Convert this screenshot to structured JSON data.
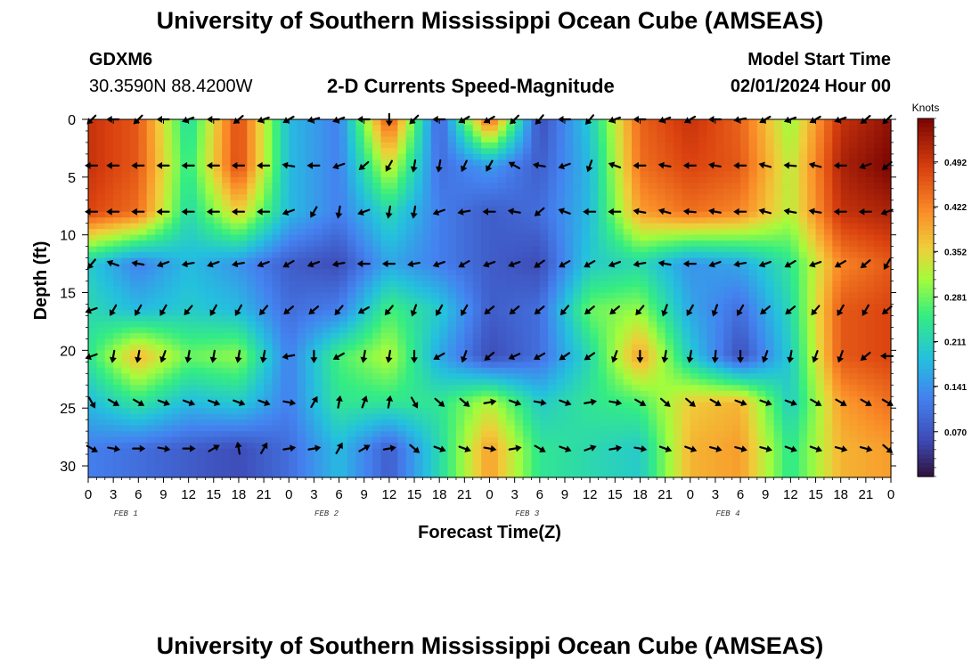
{
  "header": {
    "title": "University of Southern Mississippi Ocean Cube (AMSEAS)",
    "station_id": "GDXM6",
    "coordinates": "30.3590N  88.4200W",
    "plot_title": "2-D Currents Speed-Magnitude",
    "model_start_label": "Model Start Time",
    "model_start_value": "02/01/2024 Hour 00"
  },
  "footer": {
    "title": "University of Southern Mississippi Ocean Cube (AMSEAS)"
  },
  "chart_data": {
    "type": "heatmap",
    "xlabel": "Forecast Time(Z)",
    "ylabel": "Depth (ft)",
    "x_tick_labels": [
      "0",
      "3",
      "6",
      "9",
      "12",
      "15",
      "18",
      "21",
      "0",
      "3",
      "6",
      "9",
      "12",
      "15",
      "18",
      "21",
      "0",
      "3",
      "6",
      "9",
      "12",
      "15",
      "18",
      "21",
      "0",
      "3",
      "6",
      "9",
      "12",
      "15",
      "18",
      "21",
      "0"
    ],
    "date_labels": [
      "FEB 1",
      "FEB 2",
      "FEB 3",
      "FEB 4"
    ],
    "xlim": [
      0,
      96
    ],
    "ylim": [
      31,
      0
    ],
    "y_ticks": [
      0,
      5,
      10,
      15,
      20,
      25,
      30
    ],
    "colorbar": {
      "label": "Knots",
      "ticks": [
        "0.492",
        "0.422",
        "0.352",
        "0.281",
        "0.211",
        "0.141",
        "0.070"
      ],
      "tick_values": [
        0.492,
        0.422,
        0.352,
        0.281,
        0.211,
        0.141,
        0.07
      ],
      "range": [
        0,
        0.56
      ]
    },
    "arrow_depths": [
      0,
      4,
      8,
      12.5,
      16.5,
      20.5,
      24.5,
      28.5
    ],
    "arrow_hours_step": 3,
    "speed_grid_depths": [
      0,
      4,
      8,
      12.5,
      16.5,
      20.5,
      24.5,
      28.5
    ],
    "speed_grid_hours": [
      0,
      6,
      12,
      18,
      24,
      30,
      36,
      42,
      48,
      54,
      60,
      66,
      72,
      78,
      84,
      90,
      96
    ],
    "speed_knots": [
      [
        0.5,
        0.46,
        0.22,
        0.48,
        0.18,
        0.12,
        0.47,
        0.08,
        0.46,
        0.06,
        0.2,
        0.45,
        0.5,
        0.45,
        0.3,
        0.5,
        0.54
      ],
      [
        0.5,
        0.46,
        0.24,
        0.48,
        0.18,
        0.12,
        0.34,
        0.1,
        0.15,
        0.08,
        0.18,
        0.44,
        0.48,
        0.46,
        0.32,
        0.52,
        0.56
      ],
      [
        0.48,
        0.44,
        0.22,
        0.36,
        0.18,
        0.12,
        0.22,
        0.12,
        0.08,
        0.1,
        0.18,
        0.4,
        0.44,
        0.42,
        0.32,
        0.5,
        0.52
      ],
      [
        0.2,
        0.12,
        0.18,
        0.14,
        0.08,
        0.06,
        0.16,
        0.12,
        0.08,
        0.06,
        0.2,
        0.22,
        0.14,
        0.16,
        0.24,
        0.42,
        0.46
      ],
      [
        0.22,
        0.18,
        0.2,
        0.18,
        0.1,
        0.12,
        0.26,
        0.2,
        0.08,
        0.1,
        0.28,
        0.3,
        0.16,
        0.1,
        0.22,
        0.46,
        0.48
      ],
      [
        0.24,
        0.38,
        0.28,
        0.3,
        0.12,
        0.26,
        0.32,
        0.16,
        0.06,
        0.1,
        0.22,
        0.4,
        0.2,
        0.06,
        0.2,
        0.46,
        0.48
      ],
      [
        0.18,
        0.24,
        0.18,
        0.2,
        0.12,
        0.24,
        0.24,
        0.24,
        0.32,
        0.2,
        0.24,
        0.26,
        0.36,
        0.38,
        0.2,
        0.4,
        0.44
      ],
      [
        0.12,
        0.1,
        0.08,
        0.06,
        0.1,
        0.18,
        0.08,
        0.22,
        0.4,
        0.24,
        0.22,
        0.2,
        0.38,
        0.4,
        0.24,
        0.38,
        0.4
      ]
    ],
    "arrow_angles_deg": [
      [
        225,
        180,
        225,
        180,
        200,
        180,
        220,
        200,
        210,
        195,
        200,
        180,
        270,
        225,
        180,
        210,
        210,
        225,
        230,
        180,
        230,
        200,
        180,
        200,
        210,
        180,
        190,
        210,
        200,
        210,
        200,
        220,
        225
      ],
      [
        180,
        180,
        180,
        180,
        180,
        180,
        180,
        180,
        170,
        180,
        200,
        220,
        240,
        260,
        260,
        245,
        240,
        150,
        170,
        200,
        250,
        160,
        180,
        170,
        180,
        170,
        180,
        165,
        175,
        165,
        180,
        200,
        220
      ],
      [
        180,
        180,
        180,
        180,
        180,
        180,
        180,
        180,
        200,
        240,
        260,
        200,
        260,
        260,
        200,
        190,
        180,
        170,
        220,
        160,
        180,
        180,
        170,
        165,
        175,
        170,
        180,
        165,
        170,
        170,
        180,
        180,
        200
      ],
      [
        230,
        160,
        170,
        200,
        190,
        200,
        190,
        200,
        210,
        200,
        190,
        180,
        180,
        190,
        200,
        210,
        200,
        200,
        215,
        210,
        210,
        200,
        190,
        170,
        180,
        200,
        190,
        200,
        210,
        200,
        210,
        220,
        240
      ],
      [
        200,
        240,
        240,
        240,
        230,
        240,
        240,
        230,
        220,
        220,
        230,
        210,
        230,
        250,
        240,
        240,
        220,
        220,
        220,
        230,
        220,
        220,
        230,
        250,
        240,
        250,
        240,
        220,
        220,
        230,
        240,
        240,
        220
      ],
      [
        200,
        260,
        260,
        250,
        260,
        260,
        260,
        260,
        190,
        270,
        210,
        260,
        260,
        270,
        210,
        250,
        220,
        205,
        210,
        215,
        215,
        250,
        270,
        260,
        260,
        265,
        270,
        250,
        260,
        250,
        250,
        220,
        180
      ],
      [
        300,
        330,
        330,
        340,
        340,
        340,
        340,
        340,
        350,
        60,
        80,
        70,
        80,
        300,
        320,
        320,
        10,
        340,
        350,
        340,
        10,
        350,
        330,
        320,
        320,
        330,
        340,
        340,
        340,
        330,
        330,
        330,
        330
      ],
      [
        330,
        350,
        0,
        350,
        0,
        30,
        100,
        60,
        10,
        10,
        60,
        30,
        10,
        320,
        340,
        340,
        350,
        10,
        330,
        340,
        20,
        10,
        350,
        340,
        340,
        345,
        345,
        345,
        340,
        340,
        345,
        345,
        320
      ]
    ]
  }
}
